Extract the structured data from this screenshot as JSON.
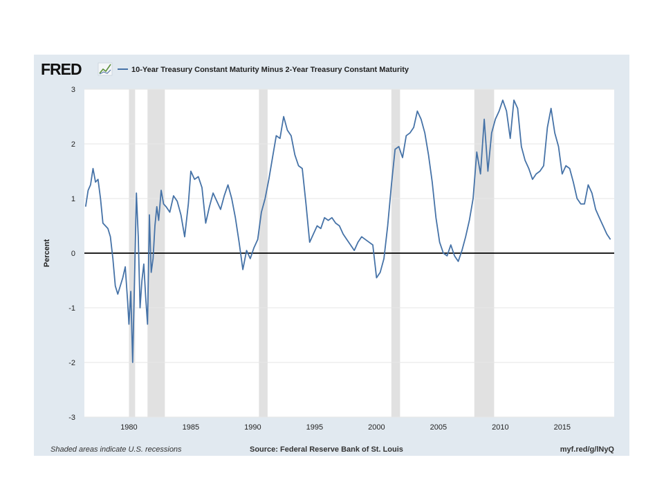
{
  "header": {
    "logo_text": "FRED",
    "logo_icon": "chart-line-icon"
  },
  "footer": {
    "note": "Shaded areas indicate U.S. recessions",
    "source": "Source: Federal Reserve Bank of St. Louis",
    "short_url": "myf.red/g/lNyQ"
  },
  "colors": {
    "frame_background": "#e1e9f0",
    "plot_background": "#ffffff",
    "series": "#4572a7",
    "recession_shade": "#e1e1e1",
    "zero_line": "#000000"
  },
  "chart_data": {
    "type": "line",
    "title": "",
    "xlabel": "",
    "ylabel": "Percent",
    "xlim": [
      1976.4,
      2019.2
    ],
    "ylim": [
      -3,
      3
    ],
    "x_ticks": [
      1980,
      1985,
      1990,
      1995,
      2000,
      2005,
      2010,
      2015
    ],
    "y_ticks": [
      -3,
      -2,
      -1,
      0,
      1,
      2,
      3
    ],
    "grid": "horizontal",
    "legend_position": "top-left",
    "recessions": [
      [
        1980.0,
        1980.5
      ],
      [
        1981.5,
        1982.9
      ],
      [
        1990.5,
        1991.2
      ],
      [
        2001.2,
        2001.9
      ],
      [
        2007.9,
        2009.5
      ]
    ],
    "series": [
      {
        "name": "10-Year Treasury Constant Maturity Minus 2-Year Treasury Constant Maturity",
        "x": [
          1976.5,
          1976.7,
          1976.9,
          1977.1,
          1977.3,
          1977.5,
          1977.7,
          1977.9,
          1978.1,
          1978.3,
          1978.5,
          1978.7,
          1978.9,
          1979.1,
          1979.3,
          1979.5,
          1979.7,
          1979.9,
          1980.0,
          1980.15,
          1980.3,
          1980.45,
          1980.6,
          1980.75,
          1980.9,
          1981.05,
          1981.2,
          1981.35,
          1981.5,
          1981.65,
          1981.8,
          1981.95,
          1982.1,
          1982.25,
          1982.4,
          1982.6,
          1982.8,
          1983.0,
          1983.3,
          1983.6,
          1983.9,
          1984.2,
          1984.5,
          1984.8,
          1985.0,
          1985.3,
          1985.6,
          1985.9,
          1986.2,
          1986.5,
          1986.8,
          1987.1,
          1987.4,
          1987.7,
          1988.0,
          1988.3,
          1988.6,
          1988.9,
          1989.2,
          1989.5,
          1989.8,
          1990.1,
          1990.4,
          1990.7,
          1991.0,
          1991.3,
          1991.6,
          1991.9,
          1992.2,
          1992.5,
          1992.8,
          1993.1,
          1993.4,
          1993.7,
          1994.0,
          1994.3,
          1994.6,
          1994.9,
          1995.2,
          1995.5,
          1995.8,
          1996.1,
          1996.4,
          1996.7,
          1997.0,
          1997.3,
          1997.6,
          1997.9,
          1998.2,
          1998.5,
          1998.8,
          1999.1,
          1999.4,
          1999.7,
          2000.0,
          2000.3,
          2000.6,
          2000.9,
          2001.2,
          2001.5,
          2001.8,
          2002.1,
          2002.4,
          2002.7,
          2003.0,
          2003.3,
          2003.6,
          2003.9,
          2004.2,
          2004.5,
          2004.8,
          2005.1,
          2005.4,
          2005.7,
          2006.0,
          2006.3,
          2006.6,
          2006.9,
          2007.2,
          2007.5,
          2007.8,
          2008.1,
          2008.4,
          2008.7,
          2009.0,
          2009.3,
          2009.6,
          2009.9,
          2010.2,
          2010.5,
          2010.8,
          2011.1,
          2011.4,
          2011.7,
          2012.0,
          2012.3,
          2012.6,
          2012.9,
          2013.2,
          2013.5,
          2013.8,
          2014.1,
          2014.4,
          2014.7,
          2015.0,
          2015.3,
          2015.6,
          2015.9,
          2016.2,
          2016.5,
          2016.8,
          2017.1,
          2017.4,
          2017.7,
          2018.0,
          2018.3,
          2018.6,
          2018.9
        ],
        "values": [
          0.85,
          1.15,
          1.25,
          1.55,
          1.3,
          1.35,
          1.0,
          0.55,
          0.5,
          0.45,
          0.3,
          -0.1,
          -0.6,
          -0.75,
          -0.6,
          -0.45,
          -0.25,
          -0.9,
          -1.3,
          -0.7,
          -2.0,
          -0.5,
          1.1,
          0.3,
          -1.0,
          -0.5,
          -0.2,
          -0.8,
          -1.3,
          0.7,
          -0.35,
          -0.1,
          0.5,
          0.85,
          0.6,
          1.15,
          0.9,
          0.85,
          0.75,
          1.05,
          0.95,
          0.7,
          0.3,
          0.9,
          1.5,
          1.35,
          1.4,
          1.2,
          0.55,
          0.85,
          1.1,
          0.95,
          0.8,
          1.05,
          1.25,
          1.0,
          0.65,
          0.2,
          -0.3,
          0.05,
          -0.1,
          0.1,
          0.25,
          0.75,
          1.0,
          1.35,
          1.75,
          2.15,
          2.1,
          2.5,
          2.25,
          2.15,
          1.8,
          1.6,
          1.55,
          0.9,
          0.2,
          0.35,
          0.5,
          0.45,
          0.65,
          0.6,
          0.65,
          0.55,
          0.5,
          0.35,
          0.25,
          0.15,
          0.05,
          0.2,
          0.3,
          0.25,
          0.2,
          0.15,
          -0.45,
          -0.35,
          -0.1,
          0.5,
          1.25,
          1.9,
          1.95,
          1.75,
          2.15,
          2.2,
          2.3,
          2.6,
          2.45,
          2.2,
          1.8,
          1.3,
          0.65,
          0.2,
          0.0,
          -0.05,
          0.15,
          -0.05,
          -0.15,
          0.05,
          0.3,
          0.6,
          1.0,
          1.85,
          1.45,
          2.45,
          1.5,
          2.2,
          2.45,
          2.6,
          2.8,
          2.6,
          2.1,
          2.8,
          2.65,
          1.95,
          1.7,
          1.55,
          1.35,
          1.45,
          1.5,
          1.6,
          2.3,
          2.65,
          2.2,
          1.95,
          1.45,
          1.6,
          1.55,
          1.3,
          1.0,
          0.9,
          0.9,
          1.25,
          1.1,
          0.8,
          0.65,
          0.5,
          0.35,
          0.25
        ]
      }
    ]
  }
}
